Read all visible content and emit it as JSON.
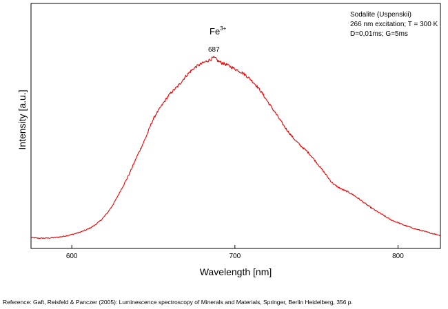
{
  "chart_data": {
    "type": "line",
    "xlabel": "Wavelength [nm]",
    "ylabel": "Intensity [a.u.]",
    "xlim": [
      575,
      826
    ],
    "ylim": [
      0,
      1.0
    ],
    "y_tick_labels": "none",
    "grid": false,
    "x_ticks": [
      600,
      700,
      800
    ],
    "x_tick_labels": [
      "600",
      "700",
      "800"
    ],
    "legend_lines": [
      "Sodalite (Uspenskii)",
      "266 nm excitation; T = 300 K",
      "D=0,01ms; G=5ms"
    ],
    "legend_position": "top-right",
    "peak_annotation": {
      "ion": "Fe",
      "superscript": "3+",
      "wavelength_label": "687",
      "x": 687
    },
    "series": [
      {
        "color": "#ee0000",
        "x": [
          575,
          580,
          590,
          600,
          610,
          615,
          620,
          625,
          630,
          635,
          640,
          645,
          650,
          655,
          660,
          665,
          670,
          675,
          680,
          685,
          687,
          690,
          695,
          700,
          705,
          710,
          715,
          720,
          725,
          730,
          735,
          740,
          745,
          750,
          755,
          760,
          765,
          770,
          775,
          780,
          785,
          790,
          795,
          800,
          805,
          810,
          815,
          820,
          826
        ],
        "y": [
          0.011,
          0.007,
          0.011,
          0.027,
          0.057,
          0.084,
          0.125,
          0.186,
          0.266,
          0.352,
          0.451,
          0.546,
          0.653,
          0.724,
          0.787,
          0.831,
          0.886,
          0.929,
          0.955,
          0.976,
          0.985,
          0.966,
          0.947,
          0.925,
          0.901,
          0.864,
          0.814,
          0.749,
          0.684,
          0.617,
          0.559,
          0.511,
          0.471,
          0.418,
          0.361,
          0.305,
          0.275,
          0.255,
          0.227,
          0.194,
          0.164,
          0.137,
          0.11,
          0.091,
          0.074,
          0.059,
          0.047,
          0.035,
          0.022
        ]
      }
    ]
  },
  "reference": "Reference: Gaft, Reisfeld & Panczer (2005): Luminescence spectroscopy of Minerals and Materials, Springer, Berlin Heidelberg, 356 p."
}
